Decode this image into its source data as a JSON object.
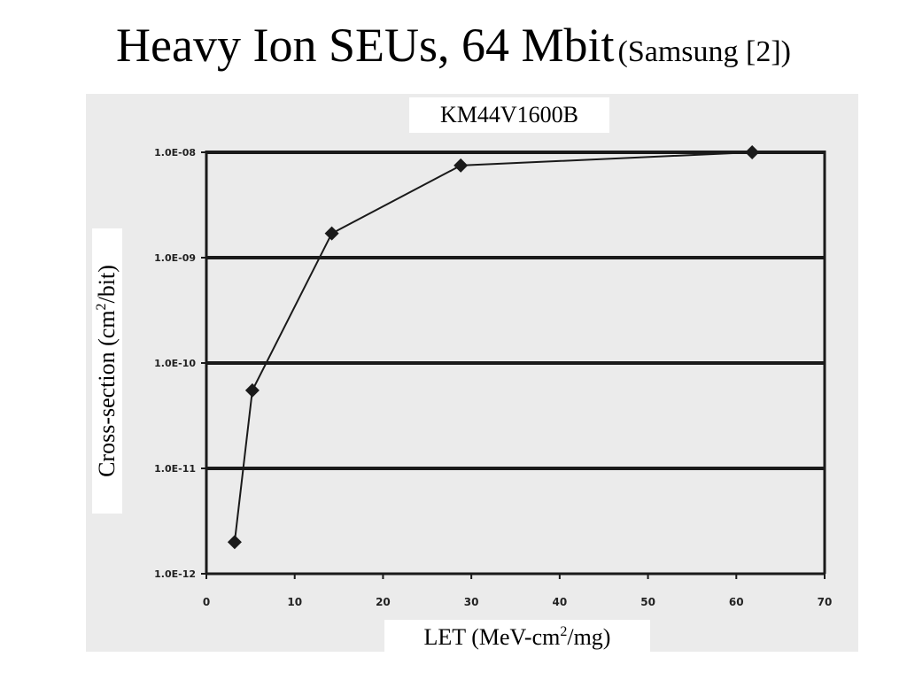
{
  "slide": {
    "title_main": "Heavy Ion SEUs, 64 Mbit",
    "title_sub": "(Samsung [2])"
  },
  "chart_data": {
    "type": "line",
    "title": "KM44V1600B",
    "xlabel_pre": "LET (MeV-cm",
    "xlabel_sup": "2",
    "xlabel_post": "/mg)",
    "ylabel_pre": "Cross-section (cm",
    "ylabel_sup": "2",
    "ylabel_post": "/bit)",
    "xlim": [
      0,
      70
    ],
    "y_scale": "log",
    "ylim": [
      1e-12,
      1e-08
    ],
    "x_ticks": [
      "0",
      "10",
      "20",
      "30",
      "40",
      "50",
      "60",
      "70"
    ],
    "y_ticks": [
      "1.0E-08",
      "1.0E-09",
      "1.0E-10",
      "1.0E-11",
      "1.0E-12"
    ],
    "grid": "horizontal",
    "marker": "diamond",
    "series": [
      {
        "x": [
          3.2,
          5.2,
          14.2,
          28.8,
          61.8
        ],
        "y": [
          2e-12,
          5.5e-11,
          1.7e-09,
          7.5e-09,
          1e-08
        ]
      }
    ],
    "colors": {
      "line": "#1a1a1a",
      "grid": "#1a1a1a",
      "background": "#ebebeb"
    }
  }
}
